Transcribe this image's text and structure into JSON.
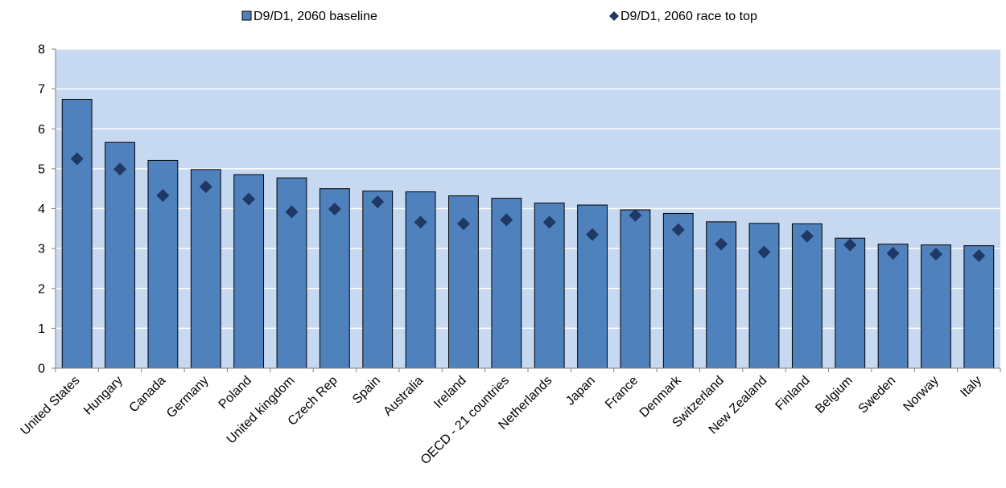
{
  "chart_data": {
    "type": "bar",
    "title": "",
    "xlabel": "",
    "ylabel": "",
    "ylim": [
      0,
      8
    ],
    "y_ticks": [
      "0",
      "1",
      "2",
      "3",
      "4",
      "5",
      "6",
      "7",
      "8"
    ],
    "grid": true,
    "legend_placement": "top",
    "categories": [
      "United States",
      "Hungary",
      "Canada",
      "Germany",
      "Poland",
      "United kingdom",
      "Czech Rep",
      "Spain",
      "Australia",
      "Ireland",
      "OECD - 21 countries",
      "Netherlands",
      "Japan",
      "France",
      "Denmark",
      "Switzerland",
      "New Zealand",
      "Finland",
      "Belgium",
      "Sweden",
      "Norway",
      "Italy"
    ],
    "series": [
      {
        "name": "D9/D1, 2060 baseline",
        "mark": "bar",
        "color": "#4F81BD",
        "values": [
          6.74,
          5.66,
          5.21,
          4.98,
          4.85,
          4.77,
          4.5,
          4.44,
          4.42,
          4.32,
          4.26,
          4.14,
          4.09,
          3.97,
          3.88,
          3.67,
          3.63,
          3.62,
          3.26,
          3.11,
          3.09,
          3.07
        ]
      },
      {
        "name": "D9/D1, 2060 race to top",
        "mark": "diamond",
        "color": "#1F3864",
        "values": [
          5.25,
          4.99,
          4.33,
          4.55,
          4.24,
          3.92,
          3.99,
          4.17,
          3.66,
          3.62,
          3.72,
          3.66,
          3.35,
          3.83,
          3.47,
          3.11,
          2.91,
          3.31,
          3.09,
          2.88,
          2.86,
          2.82
        ]
      }
    ],
    "colors": {
      "plot_background": "#C6D9F1",
      "bar_outline": "#000000",
      "axis": "#808080"
    }
  }
}
